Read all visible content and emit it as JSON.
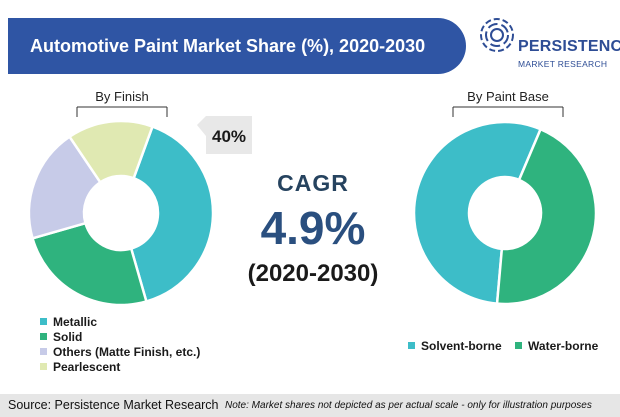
{
  "header": {
    "title": "Automotive Paint Market Share (%), 2020-2030"
  },
  "logo": {
    "word": "PERSISTENCE",
    "sub": "MARKET RESEARCH"
  },
  "cagr": {
    "label": "CAGR",
    "value": "4.9%",
    "period": "(2020-2030)"
  },
  "footer": {
    "source": "Source: Persistence Market Research",
    "note": "Note: Market shares not depicted as per actual scale - only for illustration purposes"
  },
  "chart_data": [
    {
      "type": "pie",
      "variant": "donut",
      "title": "By Finish",
      "categories": [
        "Metallic",
        "Solid",
        "Others (Matte Finish, etc.)",
        "Pearlescent"
      ],
      "values": [
        40,
        25,
        20,
        15
      ],
      "colors": [
        "#3dbdc8",
        "#2fb37e",
        "#c7cbe8",
        "#e0e9b2"
      ],
      "annotation": "40%",
      "legend": "bottom-left"
    },
    {
      "type": "pie",
      "variant": "donut",
      "title": "By Paint Base",
      "categories": [
        "Solvent-borne",
        "Water-borne"
      ],
      "values": [
        55,
        45
      ],
      "colors": [
        "#3dbdc8",
        "#2fb37e"
      ],
      "legend": "bottom"
    }
  ]
}
